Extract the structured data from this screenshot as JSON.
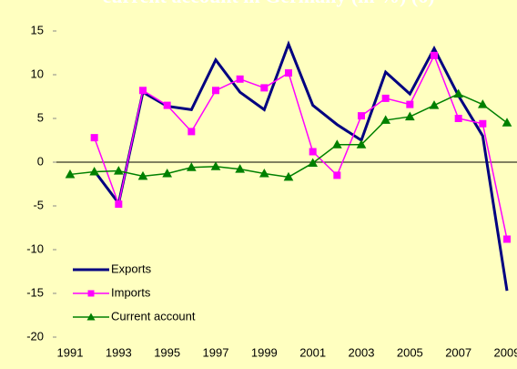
{
  "chart_data": {
    "type": "line",
    "title": "current account in Germany (in %) (6)",
    "x": [
      1991,
      1992,
      1993,
      1994,
      1995,
      1996,
      1997,
      1998,
      1999,
      2000,
      2001,
      2002,
      2003,
      2004,
      2005,
      2006,
      2007,
      2008,
      2009
    ],
    "series": [
      {
        "name": "Exports",
        "color": "#000080",
        "marker": "none",
        "values": [
          null,
          -1,
          -4.7,
          8,
          6.4,
          6,
          11.7,
          8,
          6,
          13.5,
          6.5,
          4.3,
          2.5,
          10.3,
          7.8,
          13,
          7.6,
          3,
          -14.7
        ]
      },
      {
        "name": "Imports",
        "color": "#ff00ff",
        "marker": "square",
        "values": [
          null,
          2.8,
          -4.8,
          8.2,
          6.5,
          3.5,
          8.2,
          9.5,
          8.5,
          10.2,
          1.2,
          -1.5,
          5.3,
          7.3,
          6.6,
          12.2,
          5,
          4.4,
          -8.8
        ]
      },
      {
        "name": "Current account",
        "color": "#008000",
        "marker": "triangle",
        "values": [
          -1.4,
          -1.1,
          -1,
          -1.6,
          -1.3,
          -0.6,
          -0.5,
          -0.8,
          -1.3,
          -1.7,
          -0.1,
          2,
          2,
          4.8,
          5.2,
          6.5,
          7.8,
          6.6,
          4.5
        ]
      }
    ],
    "xlim": [
      1991,
      2009
    ],
    "xticks": [
      1991,
      1993,
      1995,
      1997,
      1999,
      2001,
      2003,
      2005,
      2007,
      2009
    ],
    "ylim": [
      -20,
      15
    ],
    "yticks": [
      -20,
      -15,
      -10,
      -5,
      0,
      5,
      10,
      15
    ],
    "legend": "lower left"
  }
}
